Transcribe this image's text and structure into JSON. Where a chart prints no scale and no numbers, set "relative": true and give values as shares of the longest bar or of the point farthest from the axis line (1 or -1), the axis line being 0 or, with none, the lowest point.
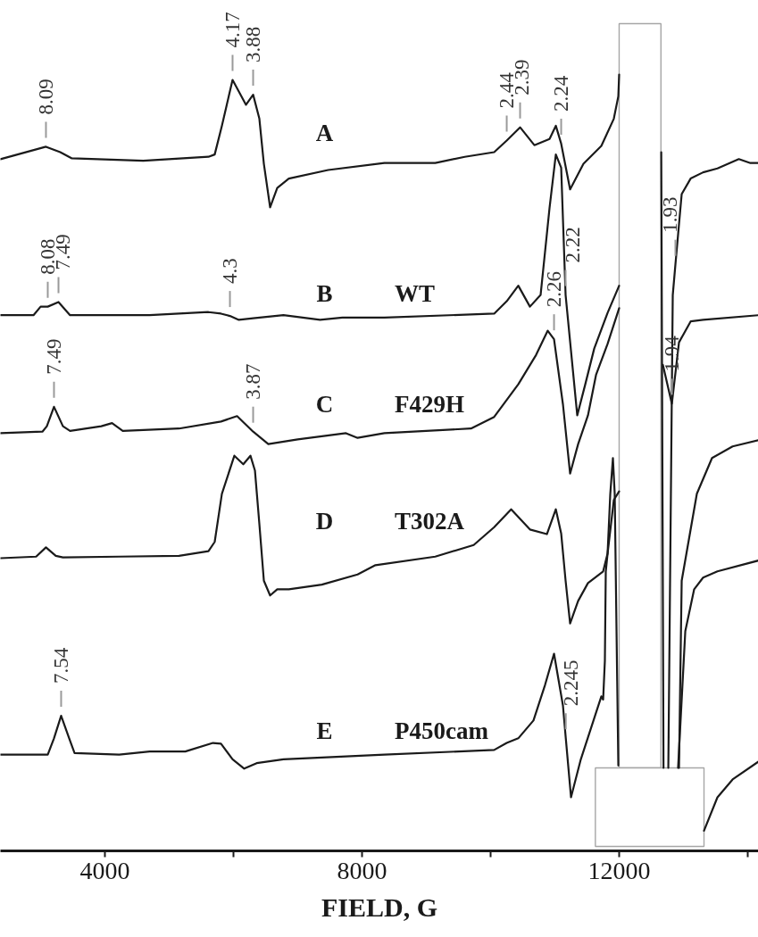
{
  "chart_data": {
    "type": "line",
    "relative": true,
    "xlabel": "FIELD, G",
    "xlim": [
      2375,
      14167
    ],
    "xticks": [
      4000,
      {
        "value": 6000,
        "label": null
      },
      8000,
      {
        "value": 10000,
        "label": null
      },
      12000,
      {
        "value": 14000,
        "label": null
      }
    ],
    "series": [
      {
        "name": "A",
        "color": "#1a1a1a",
        "x": [
          2375,
          3083,
          3305,
          3486,
          4597,
          5611,
          5708,
          5820,
          5986,
          6195,
          6306,
          6403,
          6473,
          6570,
          6681,
          6861,
          7473,
          8348,
          9139,
          9598,
          10056,
          10251,
          10459,
          10681,
          10917,
          11015,
          11098,
          11237,
          11445,
          11723,
          11917,
          11987,
          12000,
          12300,
          12655,
          12690,
          12730,
          12765,
          12834,
          12875,
          12973,
          13112,
          13306,
          13529,
          13862,
          14042,
          14167
        ],
        "values": [
          0.891,
          0.907,
          0.9,
          0.892,
          0.889,
          0.894,
          0.897,
          0.934,
          0.993,
          0.961,
          0.974,
          0.943,
          0.885,
          0.829,
          0.854,
          0.866,
          0.877,
          0.886,
          0.886,
          0.894,
          0.9,
          0.915,
          0.932,
          0.909,
          0.917,
          0.934,
          0.911,
          0.852,
          0.885,
          0.908,
          0.943,
          0.972,
          1.0,
          null,
          0.9,
          0.107,
          null,
          0.107,
          0.716,
          0.755,
          0.846,
          0.866,
          0.874,
          0.879,
          0.891,
          0.886,
          0.886
        ]
      },
      {
        "name": "B",
        "color": "#1a1a1a",
        "x": [
          2375,
          2889,
          3000,
          3111,
          3278,
          3458,
          4695,
          5611,
          5806,
          5945,
          6084,
          6306,
          6778,
          7347,
          7695,
          8348,
          10056,
          10251,
          10431,
          10612,
          10778,
          10917,
          11015,
          11098,
          11167,
          11348,
          11473,
          11612,
          11820,
          12000,
          12300,
          12681,
          12820,
          12931,
          13112,
          13306,
          14167
        ],
        "values": [
          0.69,
          0.69,
          0.701,
          0.701,
          0.707,
          0.69,
          0.69,
          0.694,
          0.692,
          0.689,
          0.684,
          0.686,
          0.69,
          0.684,
          0.687,
          0.687,
          0.692,
          0.708,
          0.728,
          0.701,
          0.716,
          0.828,
          0.897,
          0.88,
          0.716,
          0.561,
          0.601,
          0.647,
          0.693,
          0.728,
          null,
          0.626,
          0.576,
          0.655,
          0.682,
          0.684,
          0.69
        ]
      },
      {
        "name": "C",
        "color": "#1a1a1a",
        "x": [
          2375,
          3028,
          3097,
          3208,
          3347,
          3458,
          3944,
          4111,
          4278,
          5153,
          5806,
          6056,
          6306,
          6542,
          7000,
          7750,
          7931,
          8348,
          9695,
          10056,
          10431,
          10709,
          10889,
          10987,
          11126,
          11237,
          11362,
          11515,
          11640,
          11820,
          12000,
          12500,
          12931,
          12973,
          13209,
          13445,
          13765,
          14167
        ],
        "values": [
          0.538,
          0.54,
          0.547,
          0.572,
          0.547,
          0.541,
          0.547,
          0.551,
          0.541,
          0.544,
          0.553,
          0.56,
          0.54,
          0.524,
          0.53,
          0.538,
          0.532,
          0.538,
          0.544,
          0.559,
          0.601,
          0.639,
          0.67,
          0.659,
          0.575,
          0.486,
          0.524,
          0.561,
          0.613,
          0.653,
          0.699,
          null,
          0.107,
          0.348,
          0.46,
          0.506,
          0.521,
          0.529
        ]
      },
      {
        "name": "D",
        "color": "#1a1a1a",
        "x": [
          2375,
          2930,
          3083,
          3236,
          3347,
          4222,
          5153,
          5611,
          5708,
          5820,
          6014,
          6153,
          6264,
          6334,
          6403,
          6473,
          6570,
          6681,
          6861,
          7375,
          7931,
          8209,
          9139,
          9737,
          10056,
          10320,
          10612,
          10876,
          11015,
          11098,
          11167,
          11237,
          11362,
          11515,
          11751,
          11820,
          11862,
          11903,
          11931,
          11987,
          12400,
          12917,
          13029,
          13167,
          13306,
          13529,
          14167
        ],
        "values": [
          0.377,
          0.379,
          0.391,
          0.38,
          0.378,
          0.379,
          0.38,
          0.386,
          0.398,
          0.46,
          0.509,
          0.498,
          0.509,
          0.49,
          0.421,
          0.348,
          0.329,
          0.337,
          0.337,
          0.343,
          0.356,
          0.368,
          0.379,
          0.394,
          0.417,
          0.44,
          0.414,
          0.408,
          0.44,
          0.409,
          0.348,
          0.293,
          0.322,
          0.345,
          0.36,
          0.383,
          0.46,
          0.506,
          0.46,
          0.11,
          null,
          0.107,
          0.283,
          0.337,
          0.352,
          0.36,
          0.374
        ]
      },
      {
        "name": "E",
        "color": "#1a1a1a",
        "x": [
          2375,
          3111,
          3208,
          3319,
          3444,
          3528,
          4222,
          4695,
          5250,
          5681,
          5806,
          5986,
          6167,
          6361,
          6778,
          8348,
          10056,
          10251,
          10431,
          10667,
          10848,
          10987,
          11126,
          11170,
          11251,
          11404,
          11723,
          11751,
          11778,
          11792,
          11820,
          11917,
          12000,
          12600,
          13320,
          13529,
          13765,
          14167
        ],
        "values": [
          0.124,
          0.124,
          0.145,
          0.174,
          0.145,
          0.126,
          0.124,
          0.128,
          0.128,
          0.139,
          0.138,
          0.118,
          0.106,
          0.113,
          0.118,
          0.124,
          0.13,
          0.139,
          0.145,
          0.168,
          0.214,
          0.254,
          0.187,
          0.145,
          0.069,
          0.118,
          0.199,
          0.195,
          0.245,
          0.36,
          0.383,
          0.452,
          0.463,
          null,
          0.026,
          0.069,
          0.092,
          0.115
        ]
      }
    ],
    "annotations": [
      {
        "text": "8.09",
        "x": 3083,
        "y": 0.907
      },
      {
        "text": "4.17",
        "x": 5986,
        "y": 0.993
      },
      {
        "text": "3.88",
        "x": 6306,
        "y": 0.974
      },
      {
        "text": "2.44",
        "x": 10251,
        "y": 0.915
      },
      {
        "text": "2.39",
        "x": 10459,
        "y": 0.932
      },
      {
        "text": "2.24",
        "x": 11098,
        "y": 0.911
      },
      {
        "text": "1.93",
        "x": 12875,
        "y": 0.755
      },
      {
        "text": "8.08",
        "x": 3111,
        "y": 0.701
      },
      {
        "text": "7.49",
        "x": 3278,
        "y": 0.707
      },
      {
        "text": "4.3",
        "x": 5945,
        "y": 0.689
      },
      {
        "text": "2.22",
        "x": 11167,
        "y": 0.716
      },
      {
        "text": "1.94",
        "x": 12820,
        "y": 0.576
      },
      {
        "text": "7.49",
        "x": 3208,
        "y": 0.572
      },
      {
        "text": "3.87",
        "x": 6306,
        "y": 0.54
      },
      {
        "text": "2.26",
        "x": 10987,
        "y": 0.659
      },
      {
        "text": "7.54",
        "x": 3319,
        "y": 0.174
      },
      {
        "text": "2.245",
        "x": 11170,
        "y": 0.145
      },
      "WT",
      "F429H",
      "T302A",
      "P450cam"
    ],
    "bands": [
      {
        "axis": "x",
        "from": 12000,
        "to": 12650
      },
      {
        "axis": "x",
        "from": 11630,
        "to": 13320
      }
    ]
  }
}
